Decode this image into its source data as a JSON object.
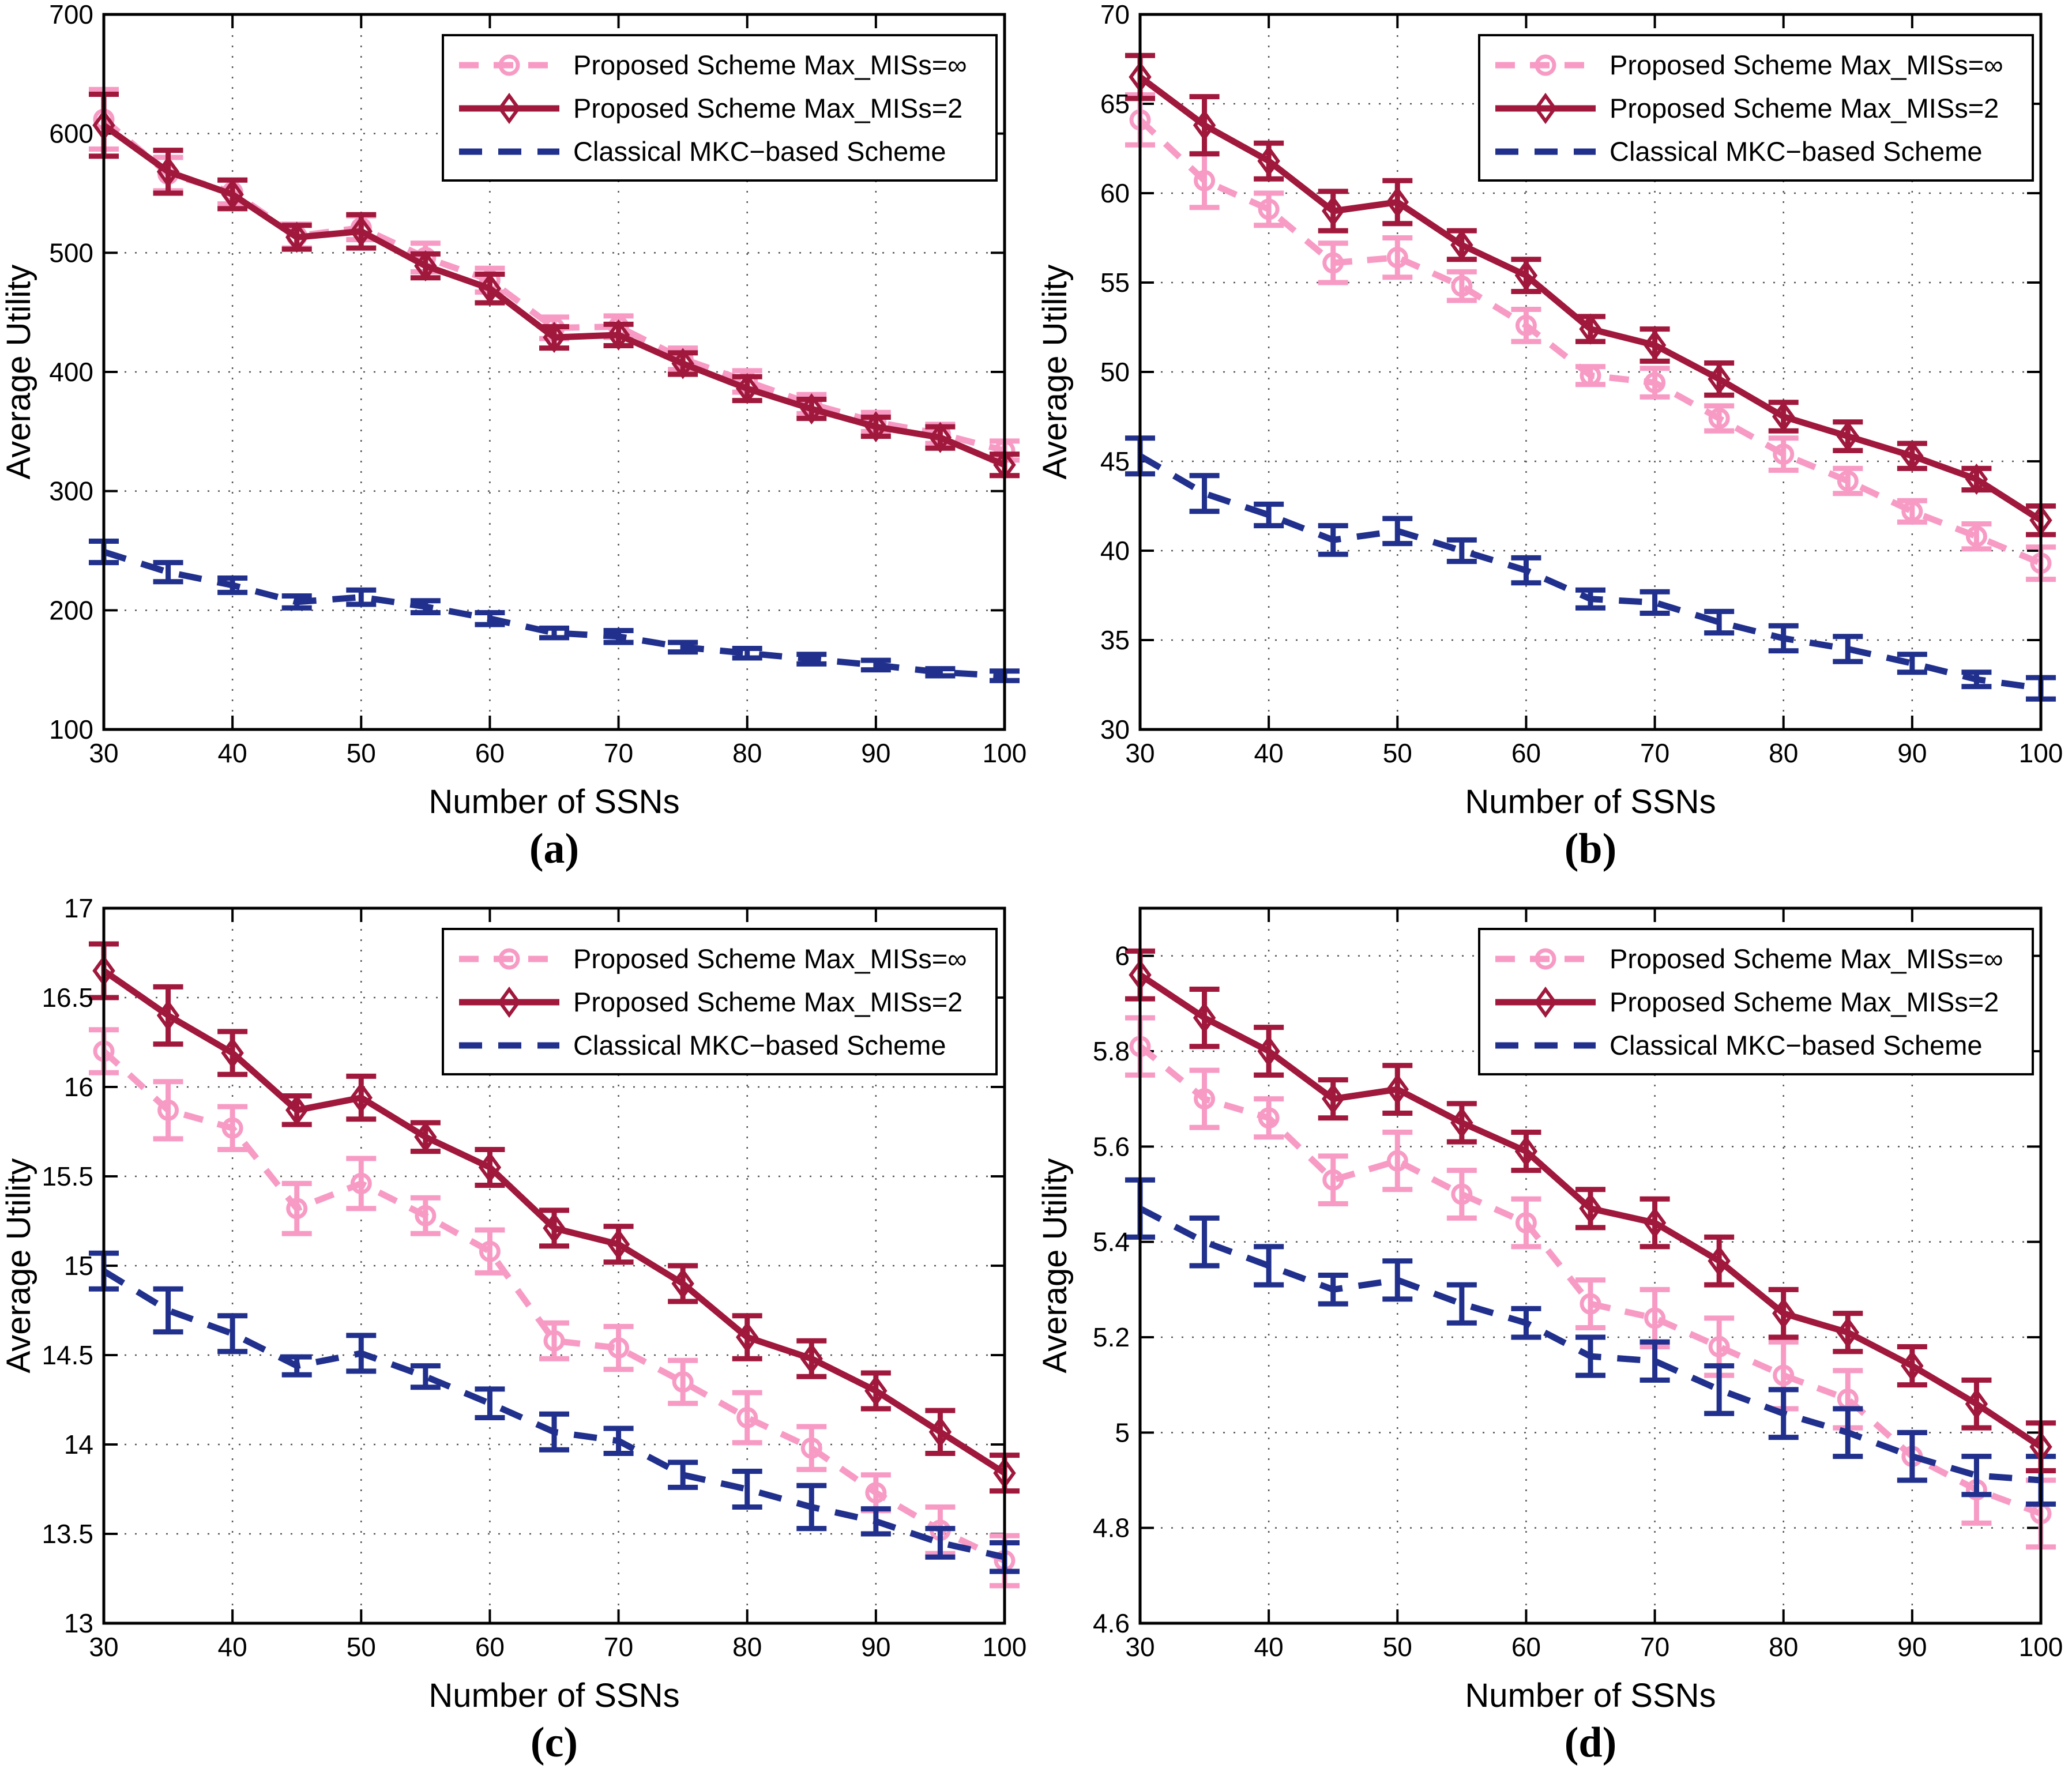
{
  "figure": {
    "x_label": "Number of SSNs",
    "y_label": "Average Utility",
    "legend": [
      "Proposed Scheme Max_MISs=∞",
      "Proposed Scheme Max_MISs=2",
      "Classical MKC−based Scheme"
    ],
    "colors": {
      "pink": "#F79BC5",
      "red": "#A0183C",
      "blue": "#20308C",
      "axis": "#000000",
      "grid": "#555555",
      "background": "#ffffff"
    }
  },
  "chart_data": [
    {
      "type": "line",
      "panel_label": "(a)",
      "xlabel": "Number of SSNs",
      "ylabel": "Average Utility",
      "x": [
        30,
        35,
        40,
        45,
        50,
        55,
        60,
        65,
        70,
        75,
        80,
        85,
        90,
        95,
        100
      ],
      "xlim": [
        30,
        100
      ],
      "ylim": [
        100,
        700
      ],
      "x_tick_labels": [
        "30",
        "40",
        "50",
        "60",
        "70",
        "80",
        "90",
        "100"
      ],
      "x_ticks": [
        30,
        40,
        50,
        60,
        70,
        80,
        90,
        100
      ],
      "y_ticks": [
        100,
        200,
        300,
        400,
        500,
        600,
        700
      ],
      "y_tick_labels": [
        "100",
        "200",
        "300",
        "400",
        "500",
        "600",
        "700"
      ],
      "grid": true,
      "legend_position": "top-right",
      "series": [
        {
          "name": "Proposed Scheme Max_MISs=∞",
          "color_key": "pink",
          "style": "dashed",
          "marker": "circle",
          "values": [
            612,
            566,
            551,
            514,
            521,
            496,
            477,
            437,
            438,
            411,
            392,
            373,
            358,
            348,
            334
          ],
          "err": [
            25,
            14,
            10,
            10,
            10,
            12,
            10,
            9,
            9,
            9,
            9,
            8,
            8,
            8,
            8
          ]
        },
        {
          "name": "Proposed Scheme Max_MISs=2",
          "color_key": "red",
          "style": "solid",
          "marker": "diamond",
          "values": [
            607,
            568,
            549,
            513,
            518,
            489,
            470,
            429,
            431,
            407,
            386,
            369,
            354,
            345,
            322
          ],
          "err": [
            26,
            18,
            12,
            10,
            14,
            10,
            12,
            9,
            9,
            9,
            10,
            8,
            8,
            9,
            9
          ]
        },
        {
          "name": "Classical MKC−based Scheme",
          "color_key": "blue",
          "style": "dashed",
          "marker": "none",
          "values": [
            249,
            232,
            221,
            207,
            211,
            203,
            193,
            181,
            178,
            169,
            164,
            159,
            154,
            148,
            145
          ],
          "err": [
            9,
            8,
            6,
            5,
            6,
            5,
            5,
            4,
            5,
            4,
            4,
            4,
            4,
            3,
            4
          ]
        }
      ]
    },
    {
      "type": "line",
      "panel_label": "(b)",
      "xlabel": "Number of SSNs",
      "ylabel": "Average Utility",
      "x": [
        30,
        35,
        40,
        45,
        50,
        55,
        60,
        65,
        70,
        75,
        80,
        85,
        90,
        95,
        100
      ],
      "xlim": [
        30,
        100
      ],
      "ylim": [
        30,
        70
      ],
      "x_tick_labels": [
        "30",
        "40",
        "50",
        "60",
        "70",
        "80",
        "90",
        "100"
      ],
      "x_ticks": [
        30,
        40,
        50,
        60,
        70,
        80,
        90,
        100
      ],
      "y_ticks": [
        30,
        35,
        40,
        45,
        50,
        55,
        60,
        65,
        70
      ],
      "y_tick_labels": [
        "30",
        "35",
        "40",
        "45",
        "50",
        "55",
        "60",
        "65",
        "70"
      ],
      "grid": true,
      "legend_position": "top-right",
      "series": [
        {
          "name": "Proposed Scheme Max_MISs=∞",
          "color_key": "pink",
          "style": "dashed",
          "marker": "circle",
          "values": [
            64.1,
            60.7,
            59.1,
            56.1,
            56.4,
            54.8,
            52.6,
            49.8,
            49.4,
            47.4,
            45.4,
            43.9,
            42.2,
            40.8,
            39.3
          ],
          "err": [
            1.4,
            1.5,
            0.9,
            1.1,
            1.1,
            0.8,
            0.9,
            0.5,
            0.8,
            0.7,
            0.9,
            0.7,
            0.6,
            0.7,
            0.9
          ]
        },
        {
          "name": "Proposed Scheme Max_MISs=2",
          "color_key": "red",
          "style": "solid",
          "marker": "diamond",
          "values": [
            66.5,
            63.8,
            61.8,
            59.0,
            59.5,
            57.1,
            55.4,
            52.4,
            51.5,
            49.6,
            47.5,
            46.4,
            45.3,
            44.0,
            41.7
          ],
          "err": [
            1.2,
            1.6,
            1.0,
            1.1,
            1.2,
            0.8,
            0.9,
            0.7,
            0.9,
            0.9,
            0.8,
            0.8,
            0.7,
            0.6,
            0.8
          ]
        },
        {
          "name": "Classical MKC−based Scheme",
          "color_key": "blue",
          "style": "dashed",
          "marker": "none",
          "values": [
            45.3,
            43.2,
            42.0,
            40.6,
            41.1,
            40.0,
            38.9,
            37.3,
            37.1,
            36.0,
            35.1,
            34.5,
            33.7,
            32.8,
            32.3
          ],
          "err": [
            1.0,
            1.0,
            0.6,
            0.8,
            0.7,
            0.6,
            0.7,
            0.5,
            0.6,
            0.6,
            0.7,
            0.7,
            0.5,
            0.4,
            0.6
          ]
        }
      ]
    },
    {
      "type": "line",
      "panel_label": "(c)",
      "xlabel": "Number of SSNs",
      "ylabel": "Average Utility",
      "x": [
        30,
        35,
        40,
        45,
        50,
        55,
        60,
        65,
        70,
        75,
        80,
        85,
        90,
        95,
        100
      ],
      "xlim": [
        30,
        100
      ],
      "ylim": [
        13,
        17
      ],
      "x_tick_labels": [
        "30",
        "40",
        "50",
        "60",
        "70",
        "80",
        "90",
        "100"
      ],
      "x_ticks": [
        30,
        40,
        50,
        60,
        70,
        80,
        90,
        100
      ],
      "y_ticks": [
        13,
        13.5,
        14,
        14.5,
        15,
        15.5,
        16,
        16.5,
        17
      ],
      "y_tick_labels": [
        "13",
        "13.5",
        "14",
        "14.5",
        "15",
        "15.5",
        "16",
        "16.5",
        "17"
      ],
      "grid": true,
      "legend_position": "top-right",
      "series": [
        {
          "name": "Proposed Scheme Max_MISs=∞",
          "color_key": "pink",
          "style": "dashed",
          "marker": "circle",
          "values": [
            16.2,
            15.87,
            15.77,
            15.32,
            15.46,
            15.28,
            15.08,
            14.58,
            14.54,
            14.35,
            14.15,
            13.98,
            13.73,
            13.52,
            13.35
          ],
          "err": [
            0.12,
            0.16,
            0.12,
            0.14,
            0.14,
            0.1,
            0.12,
            0.1,
            0.12,
            0.12,
            0.14,
            0.12,
            0.1,
            0.13,
            0.14
          ]
        },
        {
          "name": "Proposed Scheme Max_MISs=2",
          "color_key": "red",
          "style": "solid",
          "marker": "diamond",
          "values": [
            16.65,
            16.4,
            16.19,
            15.87,
            15.94,
            15.72,
            15.55,
            15.21,
            15.12,
            14.9,
            14.6,
            14.48,
            14.3,
            14.07,
            13.84
          ],
          "err": [
            0.15,
            0.16,
            0.12,
            0.08,
            0.12,
            0.08,
            0.1,
            0.1,
            0.1,
            0.1,
            0.12,
            0.1,
            0.1,
            0.12,
            0.1
          ]
        },
        {
          "name": "Classical MKC−based Scheme",
          "color_key": "blue",
          "style": "dashed",
          "marker": "none",
          "values": [
            14.97,
            14.75,
            14.62,
            14.44,
            14.51,
            14.38,
            14.23,
            14.07,
            14.02,
            13.83,
            13.75,
            13.65,
            13.57,
            13.45,
            13.37
          ],
          "err": [
            0.1,
            0.12,
            0.1,
            0.05,
            0.1,
            0.06,
            0.08,
            0.1,
            0.07,
            0.07,
            0.1,
            0.12,
            0.07,
            0.08,
            0.08
          ]
        }
      ]
    },
    {
      "type": "line",
      "panel_label": "(d)",
      "xlabel": "Number of SSNs",
      "ylabel": "Average Utility",
      "x": [
        30,
        35,
        40,
        45,
        50,
        55,
        60,
        65,
        70,
        75,
        80,
        85,
        90,
        95,
        100
      ],
      "xlim": [
        30,
        100
      ],
      "ylim": [
        4.6,
        6.1
      ],
      "x_tick_labels": [
        "30",
        "40",
        "50",
        "60",
        "70",
        "80",
        "90",
        "100"
      ],
      "x_ticks": [
        30,
        40,
        50,
        60,
        70,
        80,
        90,
        100
      ],
      "y_ticks": [
        4.6,
        4.8,
        5,
        5.2,
        5.4,
        5.6,
        5.8,
        6
      ],
      "y_tick_labels": [
        "4.6",
        "4.8",
        "5",
        "5.2",
        "5.4",
        "5.6",
        "5.8",
        "6"
      ],
      "grid": true,
      "legend_position": "top-right",
      "series": [
        {
          "name": "Proposed Scheme Max_MISs=∞",
          "color_key": "pink",
          "style": "dashed",
          "marker": "circle",
          "values": [
            5.81,
            5.7,
            5.66,
            5.53,
            5.57,
            5.5,
            5.44,
            5.27,
            5.24,
            5.18,
            5.12,
            5.07,
            4.95,
            4.88,
            4.83
          ],
          "err": [
            0.06,
            0.06,
            0.04,
            0.05,
            0.06,
            0.05,
            0.05,
            0.05,
            0.06,
            0.06,
            0.07,
            0.06,
            0.05,
            0.07,
            0.07
          ]
        },
        {
          "name": "Proposed Scheme Max_MISs=2",
          "color_key": "red",
          "style": "solid",
          "marker": "diamond",
          "values": [
            5.96,
            5.87,
            5.8,
            5.7,
            5.72,
            5.65,
            5.59,
            5.47,
            5.44,
            5.36,
            5.25,
            5.21,
            5.14,
            5.06,
            4.97
          ],
          "err": [
            0.05,
            0.06,
            0.05,
            0.04,
            0.05,
            0.04,
            0.04,
            0.04,
            0.05,
            0.05,
            0.05,
            0.04,
            0.04,
            0.05,
            0.05
          ]
        },
        {
          "name": "Classical MKC−based Scheme",
          "color_key": "blue",
          "style": "dashed",
          "marker": "none",
          "values": [
            5.47,
            5.4,
            5.35,
            5.3,
            5.32,
            5.27,
            5.23,
            5.16,
            5.15,
            5.09,
            5.04,
            5.0,
            4.95,
            4.91,
            4.9
          ],
          "err": [
            0.06,
            0.05,
            0.04,
            0.03,
            0.04,
            0.04,
            0.03,
            0.04,
            0.04,
            0.05,
            0.05,
            0.05,
            0.05,
            0.04,
            0.05
          ]
        }
      ]
    }
  ]
}
